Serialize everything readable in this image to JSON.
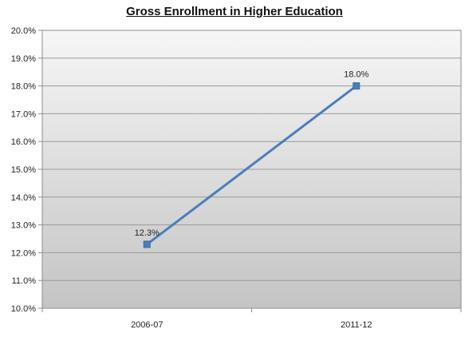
{
  "chart_data": {
    "type": "line",
    "title": "Gross Enrollment in Higher Education",
    "categories": [
      "2006-07",
      "2011-12"
    ],
    "series": [
      {
        "values": [
          12.3,
          18.0
        ],
        "data_labels": [
          "12.3%",
          "18.0%"
        ]
      }
    ],
    "ylim": [
      10,
      20
    ],
    "yticks": [
      "10.0%",
      "11.0%",
      "12.0%",
      "13.0%",
      "14.0%",
      "15.0%",
      "16.0%",
      "17.0%",
      "18.0%",
      "19.0%",
      "20.0%"
    ],
    "grid": true,
    "line_color": "#4a7ebb"
  }
}
